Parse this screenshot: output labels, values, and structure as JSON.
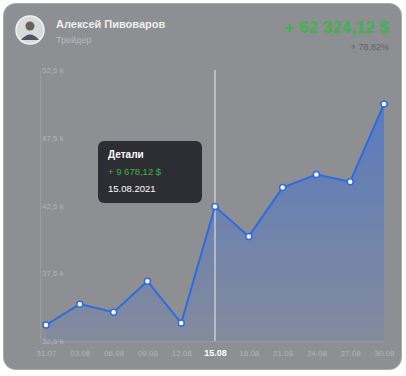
{
  "chart_data": {
    "type": "area",
    "title": "Алексей Пивоваров",
    "subtitle": "Трейдер",
    "categories": [
      "31.07",
      "03.08",
      "06.08",
      "09.08",
      "12.08",
      "15.08",
      "18.08",
      "21.08",
      "24.08",
      "27.08",
      "30.08"
    ],
    "values": [
      33.68,
      35.22,
      34.63,
      36.91,
      33.82,
      42.43,
      40.22,
      43.82,
      44.78,
      44.26,
      50.0
    ],
    "color": "#2f6be0",
    "marker": "circle",
    "line_style": "solid",
    "grid": false,
    "ylim": [
      32.5,
      52.5
    ],
    "yticks": [
      {
        "value": 32.5,
        "label": "32,5 k"
      },
      {
        "value": 37.5,
        "label": "37,5 k"
      },
      {
        "value": 42.5,
        "label": "42,5 k"
      },
      {
        "value": 47.5,
        "label": "47,5 k"
      },
      {
        "value": 52.5,
        "label": "52,5 k"
      }
    ],
    "annotations": [
      {
        "text": "+ 62 324,12 $"
      },
      {
        "text": "+ 78,82%"
      },
      {
        "x": "15.08",
        "lines": [
          "Детали",
          "+ 9 678,12 $",
          "15.08.2021"
        ]
      }
    ]
  }
}
